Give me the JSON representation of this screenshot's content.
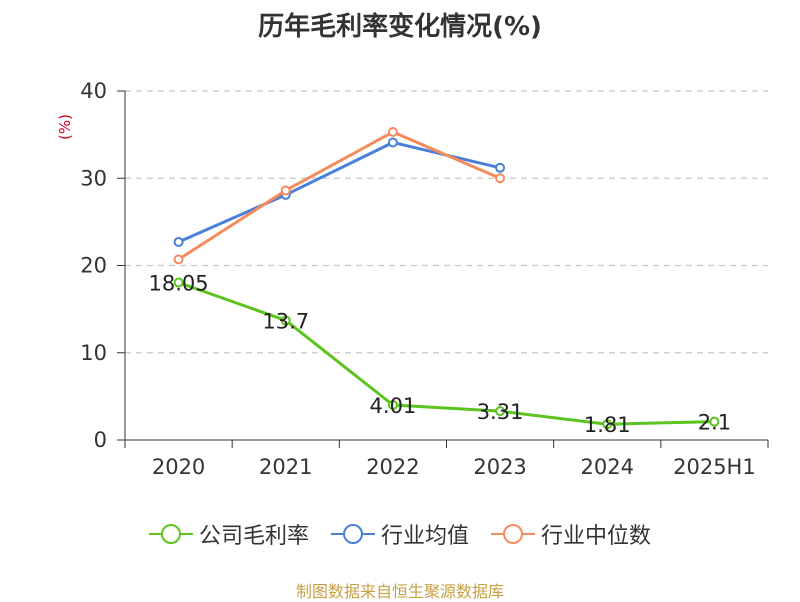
{
  "chart_data": {
    "type": "line",
    "title": "历年毛利率变化情况(%)",
    "ylabel": "(%)",
    "xlabel": "",
    "categories": [
      "2020",
      "2021",
      "2022",
      "2023",
      "2024",
      "2025H1"
    ],
    "ylim": [
      0,
      40
    ],
    "yticks": [
      "0",
      "10",
      "20",
      "30",
      "40"
    ],
    "grid": true,
    "legend_position": "bottom",
    "series": [
      {
        "name": "公司毛利率",
        "color": "#5cc41f",
        "values": [
          18.05,
          13.7,
          4.01,
          3.31,
          1.81,
          2.1
        ],
        "labels": [
          "18.05",
          "13.7",
          "4.01",
          "3.31",
          "1.81",
          "2.1"
        ]
      },
      {
        "name": "行业均值",
        "color": "#4a7fdc",
        "values": [
          22.7,
          28.1,
          34.1,
          31.2,
          null,
          null
        ]
      },
      {
        "name": "行业中位数",
        "color": "#f58b5a",
        "values": [
          20.7,
          28.6,
          35.3,
          30.0,
          null,
          null
        ]
      }
    ]
  },
  "footer": {
    "source": "制图数据来自恒生聚源数据库"
  }
}
